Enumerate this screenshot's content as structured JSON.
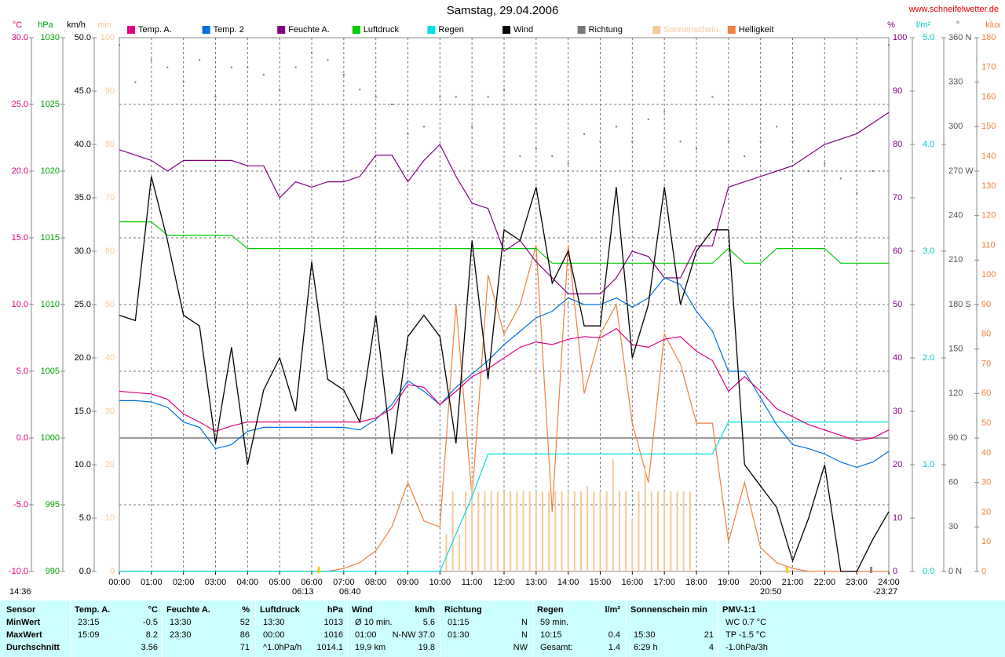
{
  "chart_data": {
    "type": "line",
    "title": "Samstag, 29.04.2006",
    "source": "www.schneifelwetter.de",
    "grid": true,
    "xlim": [
      0,
      24
    ],
    "xticks": [
      {
        "value": 0,
        "label": "00:00"
      },
      {
        "value": 1,
        "label": "01:00"
      },
      {
        "value": 2,
        "label": "02:00"
      },
      {
        "value": 3,
        "label": "03:00"
      },
      {
        "value": 4,
        "label": "04:00"
      },
      {
        "value": 5,
        "label": "05:00"
      },
      {
        "value": 6,
        "label": "06:00"
      },
      {
        "value": 7,
        "label": "07:00"
      },
      {
        "value": 8,
        "label": "08:00"
      },
      {
        "value": 9,
        "label": "09:00"
      },
      {
        "value": 10,
        "label": "10:00"
      },
      {
        "value": 11,
        "label": "11:00"
      },
      {
        "value": 12,
        "label": "12:00"
      },
      {
        "value": 13,
        "label": "13:00"
      },
      {
        "value": 14,
        "label": "14:00"
      },
      {
        "value": 15,
        "label": "15:00"
      },
      {
        "value": 16,
        "label": "16:00"
      },
      {
        "value": 17,
        "label": "17:00"
      },
      {
        "value": 18,
        "label": "18:00"
      },
      {
        "value": 19,
        "label": "19:00"
      },
      {
        "value": 20,
        "label": "20:00"
      },
      {
        "value": 21,
        "label": "21:00"
      },
      {
        "value": 22,
        "label": "22:00"
      },
      {
        "value": 23,
        "label": "23:00"
      },
      {
        "value": 24,
        "label": "24:00"
      }
    ],
    "annotations": [
      "14:36",
      "06:13",
      "06:40",
      "20:50",
      "-23:27"
    ],
    "axes": [
      {
        "unit": "°C",
        "color": "#e0007f",
        "lim": [
          -10,
          30
        ],
        "ticks": [
          {
            "value": -10,
            "label": "-10.0"
          },
          {
            "value": -5,
            "label": "-5.0"
          },
          {
            "value": 0,
            "label": "0.0"
          },
          {
            "value": 5,
            "label": "5.0"
          },
          {
            "value": 10,
            "label": "10.0"
          },
          {
            "value": 15,
            "label": "15.0"
          },
          {
            "value": 20,
            "label": "20.0"
          },
          {
            "value": 25,
            "label": "25.0"
          },
          {
            "value": 30,
            "label": "30.0"
          }
        ]
      },
      {
        "unit": "hPa",
        "color": "#00a000",
        "lim": [
          990,
          1030
        ],
        "ticks": [
          990,
          995,
          1000,
          1005,
          1010,
          1015,
          1020,
          1025,
          1030
        ]
      },
      {
        "unit": "km/h",
        "color": "#000000",
        "lim": [
          0,
          50
        ],
        "ticks": [
          {
            "value": 0,
            "label": "0.0"
          },
          {
            "value": 5,
            "label": "5.0"
          },
          {
            "value": 10,
            "label": "10.0"
          },
          {
            "value": 15,
            "label": "15.0"
          },
          {
            "value": 20,
            "label": "20.0"
          },
          {
            "value": 25,
            "label": "25.0"
          },
          {
            "value": 30,
            "label": "30.0"
          },
          {
            "value": 35,
            "label": "35.0"
          },
          {
            "value": 40,
            "label": "40.0"
          },
          {
            "value": 45,
            "label": "45.0"
          },
          {
            "value": 50,
            "label": "50.0"
          }
        ]
      },
      {
        "unit": "min",
        "color": "#f5c99a",
        "lim": [
          0,
          100
        ],
        "ticks": [
          0,
          10,
          20,
          30,
          40,
          50,
          60,
          70,
          80,
          90,
          100
        ]
      },
      {
        "unit": "%",
        "color": "#800080",
        "lim": [
          0,
          100
        ],
        "ticks": [
          0,
          10,
          20,
          30,
          40,
          50,
          60,
          70,
          80,
          90,
          100
        ]
      },
      {
        "unit": "l/m²",
        "color": "#00c8c8",
        "lim": [
          0,
          5
        ],
        "ticks": [
          {
            "value": 0,
            "label": "0.0"
          },
          {
            "value": 1,
            "label": "1.0"
          },
          {
            "value": 2,
            "label": "2.0"
          },
          {
            "value": 3,
            "label": "3.0"
          },
          {
            "value": 4,
            "label": "4.0"
          },
          {
            "value": 5,
            "label": "5.0"
          }
        ]
      },
      {
        "unit": "°",
        "color": "#555555",
        "lim": [
          0,
          360
        ],
        "ticks": [
          {
            "value": 0,
            "label": "0 N"
          },
          30,
          60,
          {
            "value": 90,
            "label": "90 O"
          },
          120,
          150,
          {
            "value": 180,
            "label": "180 S"
          },
          210,
          240,
          {
            "value": 270,
            "label": "270 W"
          },
          300,
          330,
          {
            "value": 360,
            "label": "360 N"
          }
        ]
      },
      {
        "unit": "klux",
        "color": "#f07f40",
        "lim": [
          0,
          180
        ],
        "ticks": [
          0,
          10,
          20,
          30,
          40,
          50,
          60,
          70,
          80,
          90,
          100,
          110,
          120,
          130,
          140,
          150,
          160,
          170,
          180
        ]
      }
    ],
    "x": [
      0,
      0.5,
      1,
      1.5,
      2,
      2.5,
      3,
      3.5,
      4,
      4.5,
      5,
      5.5,
      6,
      6.5,
      7,
      7.5,
      8,
      8.5,
      9,
      9.5,
      10,
      10.5,
      11,
      11.5,
      12,
      12.5,
      13,
      13.5,
      14,
      14.5,
      15,
      15.5,
      16,
      16.5,
      17,
      17.5,
      18,
      18.5,
      19,
      19.5,
      20,
      20.5,
      21,
      21.5,
      22,
      22.5,
      23,
      23.5,
      24
    ],
    "series": [
      {
        "name": "Temp. A.",
        "color": "#e0007f",
        "axis": 0,
        "values": [
          3.5,
          3.4,
          3.3,
          2.9,
          1.8,
          1.2,
          0.5,
          0.9,
          1.2,
          1.2,
          1.2,
          1.2,
          1.2,
          1.2,
          1.2,
          1.2,
          1.5,
          2.2,
          4.0,
          3.8,
          2.5,
          3.5,
          4.6,
          5.2,
          6.0,
          6.8,
          7.2,
          7.0,
          7.4,
          7.6,
          7.5,
          8.2,
          7.0,
          6.8,
          7.4,
          7.6,
          6.5,
          5.8,
          3.5,
          4.6,
          3.5,
          2.2,
          1.6,
          1.0,
          0.6,
          0.2,
          -0.2,
          0,
          0.6
        ]
      },
      {
        "name": "Temp. 2",
        "color": "#0070e0",
        "axis": 0,
        "values": [
          2.8,
          2.8,
          2.7,
          2.3,
          1.2,
          0.8,
          -0.8,
          -0.5,
          0.5,
          0.8,
          0.8,
          0.8,
          0.8,
          0.8,
          0.8,
          0.6,
          1.4,
          2.5,
          4.3,
          3.5,
          2.5,
          3.8,
          4.8,
          5.8,
          7.0,
          8.0,
          9.0,
          9.5,
          10.5,
          10.0,
          10.0,
          10.5,
          9.8,
          10.5,
          12.0,
          11.5,
          9.5,
          8.0,
          5.0,
          5.0,
          3.0,
          1.0,
          -0.5,
          -0.8,
          -1.2,
          -1.8,
          -2.2,
          -1.8,
          -1.0
        ]
      },
      {
        "name": "Feuchte A.",
        "color": "#800080",
        "axis": 4,
        "values": [
          79,
          78,
          77,
          75,
          77,
          77,
          77,
          77,
          76,
          76,
          70,
          73,
          72,
          73,
          73,
          74,
          78,
          78,
          73,
          77,
          80,
          74,
          69,
          68,
          60,
          62,
          58,
          55,
          52,
          52,
          52,
          55,
          60,
          59,
          55,
          55,
          61,
          61,
          72,
          73,
          74,
          75,
          76,
          78,
          80,
          81,
          82,
          84,
          86
        ]
      },
      {
        "name": "Luftdruck",
        "color": "#00cc00",
        "axis": 1,
        "values": [
          1016.2,
          1016.2,
          1016.2,
          1015.2,
          1015.2,
          1015.2,
          1015.2,
          1015.2,
          1014.2,
          1014.2,
          1014.2,
          1014.2,
          1014.2,
          1014.2,
          1014.2,
          1014.2,
          1014.2,
          1014.2,
          1014.2,
          1014.2,
          1014.2,
          1014.2,
          1014.2,
          1014.2,
          1014.2,
          1014.2,
          1014.2,
          1013.1,
          1013.1,
          1013.1,
          1013.1,
          1013.1,
          1013.1,
          1013.1,
          1013.1,
          1013.1,
          1013.1,
          1013.1,
          1014.2,
          1013.1,
          1013.1,
          1014.2,
          1014.2,
          1014.2,
          1014.2,
          1013.1,
          1013.1,
          1013.1,
          1013.1
        ]
      },
      {
        "name": "Regen",
        "color": "#00e0e0",
        "axis": 5,
        "values": [
          0,
          0,
          0,
          0,
          0,
          0,
          0,
          0,
          0,
          0,
          0,
          0,
          0,
          0,
          0,
          0,
          0,
          0,
          0,
          0,
          0,
          0.35,
          0.7,
          1.1,
          1.1,
          1.1,
          1.1,
          1.1,
          1.1,
          1.1,
          1.1,
          1.1,
          1.1,
          1.1,
          1.1,
          1.1,
          1.1,
          1.1,
          1.4,
          1.4,
          1.4,
          1.4,
          1.4,
          1.4,
          1.4,
          1.4,
          1.4,
          1.4,
          1.4
        ]
      },
      {
        "name": "Wind",
        "color": "#000000",
        "axis": 2,
        "values": [
          24,
          23.5,
          37,
          31,
          24,
          23,
          12,
          21,
          10,
          17,
          20,
          15,
          29,
          18,
          17,
          14,
          24,
          11,
          22,
          24,
          22,
          12,
          31,
          18,
          32,
          31,
          36,
          27,
          30,
          23,
          23,
          36,
          20,
          25,
          36,
          25,
          30,
          32,
          32,
          10,
          8,
          6,
          1,
          5,
          10,
          0,
          0,
          3,
          5.6
        ]
      },
      {
        "name": "Richtung",
        "color": "#777777",
        "axis": 6,
        "kind": "dots",
        "values": [
          355,
          330,
          345,
          340,
          330,
          345,
          320,
          340,
          340,
          335,
          325,
          340,
          350,
          345,
          335,
          325,
          320,
          315,
          295,
          300,
          320,
          320,
          300,
          320,
          325,
          280,
          285,
          280,
          275,
          295,
          290,
          300,
          290,
          305,
          310,
          290,
          285,
          320,
          290,
          280,
          290,
          300,
          290,
          270,
          275,
          265,
          255,
          270,
          355
        ]
      },
      {
        "name": "Sonnenschein",
        "color": "#f5c99a",
        "axis": 3,
        "kind": "bars",
        "x": [
          10.2,
          10.4,
          10.6,
          10.8,
          11,
          11.2,
          11.4,
          11.6,
          11.8,
          12,
          12.2,
          12.4,
          12.6,
          12.8,
          13,
          13.2,
          13.4,
          13.6,
          13.8,
          14,
          14.2,
          14.4,
          14.6,
          14.8,
          15,
          15.2,
          15.4,
          15.6,
          15.8,
          16,
          16.2,
          16.4,
          16.6,
          16.8,
          17,
          17.2,
          17.4,
          17.6,
          17.8
        ],
        "values": [
          7,
          15,
          7,
          15,
          17,
          15,
          15,
          15,
          15,
          15,
          15,
          15,
          15,
          15,
          15,
          15,
          15,
          15,
          15,
          15,
          15,
          15,
          16,
          15,
          15,
          15,
          21,
          15,
          15,
          10,
          15,
          20,
          15,
          15,
          15,
          15,
          15,
          15,
          15
        ]
      },
      {
        "name": "Helligkeit",
        "color": "#f07f40",
        "axis": 7,
        "values": [
          0,
          0,
          0,
          0,
          0,
          0,
          0,
          0,
          0,
          0,
          0,
          0,
          0,
          0,
          1,
          3,
          7,
          15,
          30,
          17,
          15,
          90,
          25,
          100,
          80,
          90,
          110,
          20,
          110,
          60,
          80,
          90,
          50,
          30,
          80,
          70,
          50,
          50,
          10,
          30,
          8,
          3,
          1,
          0,
          0,
          0,
          0,
          0,
          0
        ]
      }
    ]
  },
  "table": {
    "groups": [
      {
        "name": "Sensor",
        "rows": [
          [
            "MinWert"
          ],
          [
            "MaxWert"
          ],
          [
            "Durchschnitt"
          ]
        ]
      },
      {
        "name": "Temp. A.",
        "unit": "°C",
        "rows": [
          [
            "23:15",
            "-0.5"
          ],
          [
            "15:09",
            "8.2"
          ],
          [
            "3.56"
          ]
        ]
      },
      {
        "name": "Feuchte A.",
        "unit": "%",
        "rows": [
          [
            "13:30",
            "52"
          ],
          [
            "23:30",
            "86"
          ],
          [
            "71"
          ]
        ]
      },
      {
        "name": "Luftdruck",
        "unit": "hPa",
        "rows": [
          [
            "13:30",
            "1013"
          ],
          [
            "00:00",
            "1016"
          ],
          [
            "^1.0hPa/h",
            "1014.1"
          ]
        ]
      },
      {
        "name": "Wind",
        "unit": "km/h",
        "rows": [
          [
            "Ø 10 min.",
            "5.6"
          ],
          [
            "01:00",
            "N-NW 37.0"
          ],
          [
            "19,9 km",
            "19.8"
          ]
        ]
      },
      {
        "name": "Richtung",
        "rows": [
          [
            "01:15",
            "N"
          ],
          [
            "01:30",
            "N"
          ],
          [
            "NW"
          ]
        ]
      },
      {
        "name": "Regen",
        "unit": "l/m²",
        "rows": [
          [
            "59 min."
          ],
          [
            "10:15",
            "0.4"
          ],
          [
            "Gesamt:",
            "1.4"
          ]
        ]
      },
      {
        "name": "Sonnenschein min",
        "rows": [
          [],
          [
            "15:30",
            "21"
          ],
          [
            "6:29 h",
            "4"
          ]
        ]
      },
      {
        "name": "PMV-1:1",
        "rows": [
          [
            "WC 0.7 °C"
          ],
          [
            "TP -1.5 °C"
          ],
          [
            "-1.0hPa/3h"
          ]
        ]
      }
    ]
  }
}
